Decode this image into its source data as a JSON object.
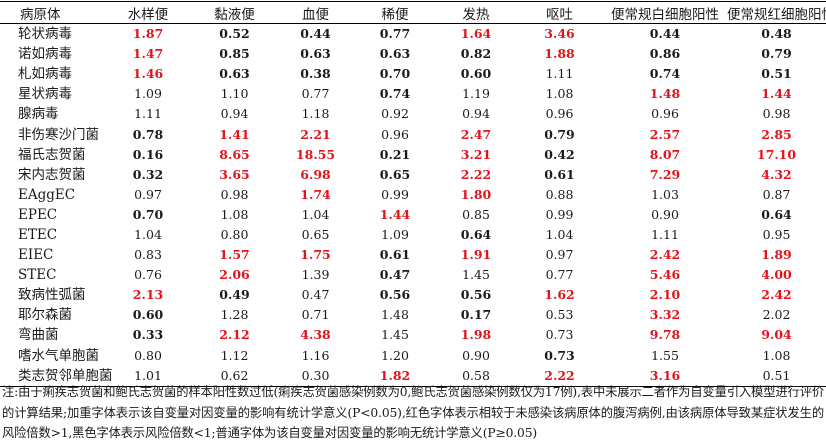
{
  "table": {
    "headers": [
      "病原体",
      "水样便",
      "黏液便",
      "血便",
      "稀便",
      "发热",
      "呕吐",
      "便常规白细胞阳性",
      "便常规红细胞阳性"
    ],
    "rows": [
      {
        "name": "轮状病毒",
        "cells": [
          {
            "v": "1.87",
            "s": "red"
          },
          {
            "v": "0.52",
            "s": "bold"
          },
          {
            "v": "0.44",
            "s": "bold"
          },
          {
            "v": "0.77",
            "s": "bold"
          },
          {
            "v": "1.64",
            "s": "red"
          },
          {
            "v": "3.46",
            "s": "red"
          },
          {
            "v": "0.44",
            "s": "bold"
          },
          {
            "v": "0.48",
            "s": "bold"
          }
        ]
      },
      {
        "name": "诺如病毒",
        "cells": [
          {
            "v": "1.47",
            "s": "red"
          },
          {
            "v": "0.85",
            "s": "bold"
          },
          {
            "v": "0.63",
            "s": "bold"
          },
          {
            "v": "0.63",
            "s": "bold"
          },
          {
            "v": "0.82",
            "s": "bold"
          },
          {
            "v": "1.88",
            "s": "red"
          },
          {
            "v": "0.86",
            "s": "bold"
          },
          {
            "v": "0.79",
            "s": "bold"
          }
        ]
      },
      {
        "name": "札如病毒",
        "cells": [
          {
            "v": "1.46",
            "s": "red"
          },
          {
            "v": "0.63",
            "s": "bold"
          },
          {
            "v": "0.38",
            "s": "bold"
          },
          {
            "v": "0.70",
            "s": "bold"
          },
          {
            "v": "0.60",
            "s": "bold"
          },
          {
            "v": "1.11",
            "s": "plain"
          },
          {
            "v": "0.74",
            "s": "bold"
          },
          {
            "v": "0.51",
            "s": "bold"
          }
        ]
      },
      {
        "name": "星状病毒",
        "cells": [
          {
            "v": "1.09",
            "s": "plain"
          },
          {
            "v": "1.10",
            "s": "plain"
          },
          {
            "v": "0.77",
            "s": "plain"
          },
          {
            "v": "0.74",
            "s": "bold"
          },
          {
            "v": "1.19",
            "s": "plain"
          },
          {
            "v": "1.08",
            "s": "plain"
          },
          {
            "v": "1.48",
            "s": "red"
          },
          {
            "v": "1.44",
            "s": "red"
          }
        ]
      },
      {
        "name": "腺病毒",
        "cells": [
          {
            "v": "1.11",
            "s": "plain"
          },
          {
            "v": "0.94",
            "s": "plain"
          },
          {
            "v": "1.18",
            "s": "plain"
          },
          {
            "v": "0.92",
            "s": "plain"
          },
          {
            "v": "0.94",
            "s": "plain"
          },
          {
            "v": "0.96",
            "s": "plain"
          },
          {
            "v": "0.96",
            "s": "plain"
          },
          {
            "v": "0.98",
            "s": "plain"
          }
        ]
      },
      {
        "name": "非伤寒沙门菌",
        "cells": [
          {
            "v": "0.78",
            "s": "bold"
          },
          {
            "v": "1.41",
            "s": "red"
          },
          {
            "v": "2.21",
            "s": "red"
          },
          {
            "v": "0.96",
            "s": "plain"
          },
          {
            "v": "2.47",
            "s": "red"
          },
          {
            "v": "0.79",
            "s": "bold"
          },
          {
            "v": "2.57",
            "s": "red"
          },
          {
            "v": "2.85",
            "s": "red"
          }
        ]
      },
      {
        "name": "福氏志贺菌",
        "cells": [
          {
            "v": "0.16",
            "s": "bold"
          },
          {
            "v": "8.65",
            "s": "red"
          },
          {
            "v": "18.55",
            "s": "red"
          },
          {
            "v": "0.21",
            "s": "bold"
          },
          {
            "v": "3.21",
            "s": "red"
          },
          {
            "v": "0.42",
            "s": "bold"
          },
          {
            "v": "8.07",
            "s": "red"
          },
          {
            "v": "17.10",
            "s": "red"
          }
        ]
      },
      {
        "name": "宋内志贺菌",
        "cells": [
          {
            "v": "0.32",
            "s": "bold"
          },
          {
            "v": "3.65",
            "s": "red"
          },
          {
            "v": "6.98",
            "s": "red"
          },
          {
            "v": "0.65",
            "s": "bold"
          },
          {
            "v": "2.22",
            "s": "red"
          },
          {
            "v": "0.61",
            "s": "bold"
          },
          {
            "v": "7.29",
            "s": "red"
          },
          {
            "v": "4.32",
            "s": "red"
          }
        ]
      },
      {
        "name": "EAggEC",
        "cells": [
          {
            "v": "0.97",
            "s": "plain"
          },
          {
            "v": "0.98",
            "s": "plain"
          },
          {
            "v": "1.74",
            "s": "red"
          },
          {
            "v": "0.99",
            "s": "plain"
          },
          {
            "v": "1.80",
            "s": "red"
          },
          {
            "v": "0.88",
            "s": "plain"
          },
          {
            "v": "1.03",
            "s": "plain"
          },
          {
            "v": "0.87",
            "s": "plain"
          }
        ]
      },
      {
        "name": "EPEC",
        "cells": [
          {
            "v": "0.70",
            "s": "bold"
          },
          {
            "v": "1.08",
            "s": "plain"
          },
          {
            "v": "1.04",
            "s": "plain"
          },
          {
            "v": "1.44",
            "s": "red"
          },
          {
            "v": "0.85",
            "s": "plain"
          },
          {
            "v": "0.99",
            "s": "plain"
          },
          {
            "v": "0.90",
            "s": "plain"
          },
          {
            "v": "0.64",
            "s": "bold"
          }
        ]
      },
      {
        "name": "ETEC",
        "cells": [
          {
            "v": "1.04",
            "s": "plain"
          },
          {
            "v": "0.80",
            "s": "plain"
          },
          {
            "v": "0.65",
            "s": "plain"
          },
          {
            "v": "1.09",
            "s": "plain"
          },
          {
            "v": "0.64",
            "s": "bold"
          },
          {
            "v": "1.04",
            "s": "plain"
          },
          {
            "v": "1.11",
            "s": "plain"
          },
          {
            "v": "0.95",
            "s": "plain"
          }
        ]
      },
      {
        "name": "EIEC",
        "cells": [
          {
            "v": "0.83",
            "s": "plain"
          },
          {
            "v": "1.57",
            "s": "red"
          },
          {
            "v": "1.75",
            "s": "red"
          },
          {
            "v": "0.61",
            "s": "bold"
          },
          {
            "v": "1.91",
            "s": "red"
          },
          {
            "v": "0.97",
            "s": "plain"
          },
          {
            "v": "2.42",
            "s": "red"
          },
          {
            "v": "1.89",
            "s": "red"
          }
        ]
      },
      {
        "name": "STEC",
        "cells": [
          {
            "v": "0.76",
            "s": "plain"
          },
          {
            "v": "2.06",
            "s": "red"
          },
          {
            "v": "1.39",
            "s": "plain"
          },
          {
            "v": "0.47",
            "s": "bold"
          },
          {
            "v": "1.45",
            "s": "plain"
          },
          {
            "v": "0.77",
            "s": "plain"
          },
          {
            "v": "5.46",
            "s": "red"
          },
          {
            "v": "4.00",
            "s": "red"
          }
        ]
      },
      {
        "name": "致病性弧菌",
        "cells": [
          {
            "v": "2.13",
            "s": "red"
          },
          {
            "v": "0.49",
            "s": "bold"
          },
          {
            "v": "0.47",
            "s": "plain"
          },
          {
            "v": "0.56",
            "s": "bold"
          },
          {
            "v": "0.56",
            "s": "bold"
          },
          {
            "v": "1.62",
            "s": "red"
          },
          {
            "v": "2.10",
            "s": "red"
          },
          {
            "v": "2.42",
            "s": "red"
          }
        ]
      },
      {
        "name": "耶尔森菌",
        "cells": [
          {
            "v": "0.60",
            "s": "bold"
          },
          {
            "v": "1.28",
            "s": "plain"
          },
          {
            "v": "0.71",
            "s": "plain"
          },
          {
            "v": "1.48",
            "s": "plain"
          },
          {
            "v": "0.17",
            "s": "bold"
          },
          {
            "v": "0.53",
            "s": "plain"
          },
          {
            "v": "3.32",
            "s": "red"
          },
          {
            "v": "2.02",
            "s": "plain"
          }
        ]
      },
      {
        "name": "弯曲菌",
        "cells": [
          {
            "v": "0.33",
            "s": "bold"
          },
          {
            "v": "2.12",
            "s": "red"
          },
          {
            "v": "4.38",
            "s": "red"
          },
          {
            "v": "1.45",
            "s": "plain"
          },
          {
            "v": "1.98",
            "s": "red"
          },
          {
            "v": "0.73",
            "s": "plain"
          },
          {
            "v": "9.78",
            "s": "red"
          },
          {
            "v": "9.04",
            "s": "red"
          }
        ]
      },
      {
        "name": "嗜水气单胞菌",
        "cells": [
          {
            "v": "0.80",
            "s": "plain"
          },
          {
            "v": "1.12",
            "s": "plain"
          },
          {
            "v": "1.16",
            "s": "plain"
          },
          {
            "v": "1.20",
            "s": "plain"
          },
          {
            "v": "0.90",
            "s": "plain"
          },
          {
            "v": "0.73",
            "s": "bold"
          },
          {
            "v": "1.55",
            "s": "plain"
          },
          {
            "v": "1.08",
            "s": "plain"
          }
        ]
      },
      {
        "name": "类志贺邻单胞菌",
        "cells": [
          {
            "v": "1.01",
            "s": "plain"
          },
          {
            "v": "0.62",
            "s": "plain"
          },
          {
            "v": "0.30",
            "s": "plain"
          },
          {
            "v": "1.82",
            "s": "red"
          },
          {
            "v": "0.58",
            "s": "plain"
          },
          {
            "v": "2.22",
            "s": "red"
          },
          {
            "v": "3.16",
            "s": "red"
          },
          {
            "v": "0.51",
            "s": "plain"
          }
        ]
      }
    ]
  },
  "footnote": "注:由于痢疾志贺菌和鲍氏志贺菌的样本阳性数过低(痢疾志贺菌感染例数为0,鲍氏志贺菌感染例数仅为17例),表中未展示二者作为自变量引入模型进行评价的计算结果;加重字体表示该自变量对因变量的影响有统计学意义(P<0.05),红色字体表示相较于未感染该病原体的腹泻病例,由该病原体导致某症状发生的风险倍数>1,黑色字体表示风险倍数<1;普通字体为该自变量对因变量的影响无统计学意义(P≥0.05)",
  "colors": {
    "significant_high": "#e1141c",
    "text": "#1a1a1a"
  }
}
